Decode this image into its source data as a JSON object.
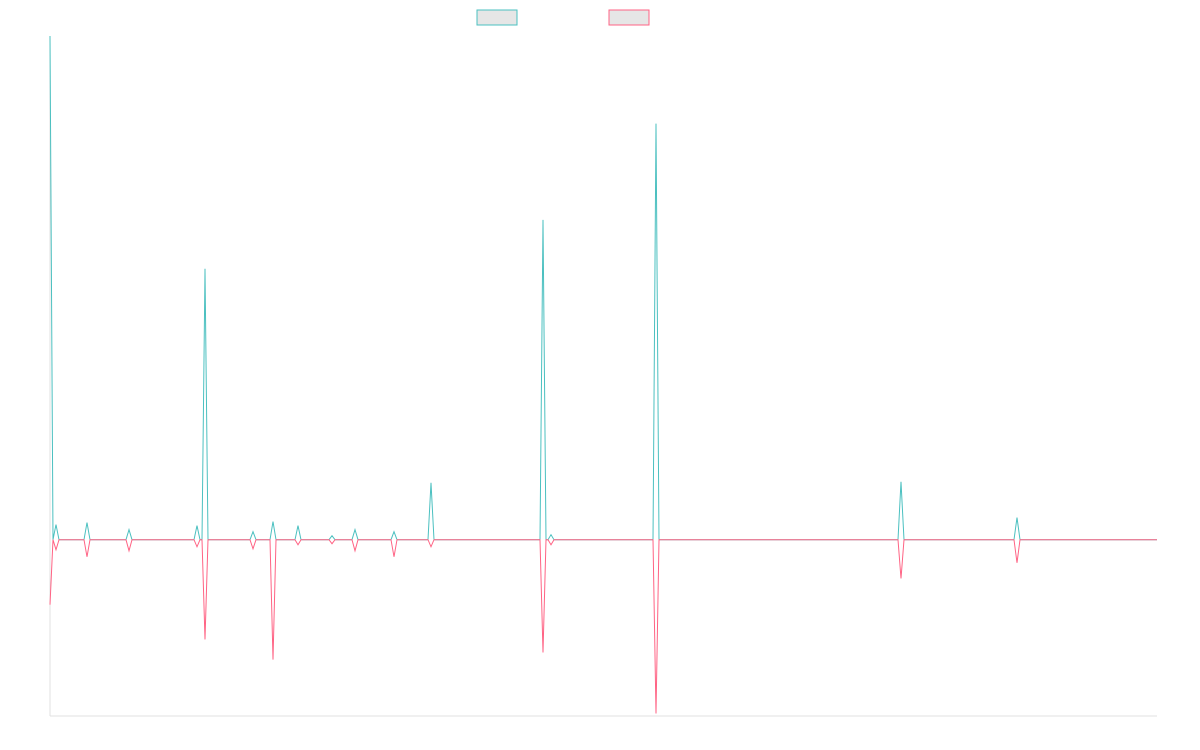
{
  "chart_data": {
    "type": "line",
    "x": [
      0,
      3,
      6,
      9,
      34,
      37,
      40,
      76,
      79,
      82,
      144,
      147,
      150,
      152,
      155,
      158,
      200,
      203,
      206,
      220,
      223,
      226,
      245,
      248,
      251,
      279,
      282,
      285,
      302,
      305,
      308,
      341,
      344,
      347,
      378,
      381,
      384,
      490,
      493,
      496,
      498,
      501,
      504,
      603,
      606,
      609,
      848,
      851,
      854,
      964,
      967,
      970,
      1107
    ],
    "series": [
      {
        "color": "#4bc0c0",
        "values": [
          100,
          0,
          3.0,
          0,
          0,
          3.4,
          0,
          0,
          2.0,
          0,
          0,
          2.8,
          0,
          0,
          53.8,
          0,
          0,
          1.6,
          0,
          0,
          3.6,
          0,
          0,
          2.8,
          0,
          0,
          0.8,
          0,
          0,
          2.0,
          0,
          0,
          1.6,
          0,
          0,
          11.3,
          0,
          0,
          63.5,
          0,
          0,
          1.0,
          0,
          0,
          82.6,
          0,
          0,
          11.5,
          0,
          0,
          4.4,
          0,
          0
        ]
      },
      {
        "color": "#ff6384",
        "values": [
          -12.9,
          0,
          -2.0,
          0,
          0,
          -3.4,
          0,
          0,
          -2.2,
          0,
          0,
          -1.4,
          0,
          0,
          -19.8,
          0,
          0,
          -1.8,
          0,
          0,
          -23.8,
          0,
          0,
          -1.0,
          0,
          0,
          -0.8,
          0,
          0,
          -2.2,
          0,
          0,
          -3.4,
          0,
          0,
          -1.4,
          0,
          0,
          -22.4,
          0,
          0,
          -1.0,
          0,
          0,
          -34.5,
          0,
          0,
          -7.7,
          0,
          0,
          -4.6,
          0,
          0
        ]
      }
    ],
    "xlim": [
      0,
      1107
    ],
    "ylim": [
      -35,
      100
    ],
    "legend": "top"
  }
}
